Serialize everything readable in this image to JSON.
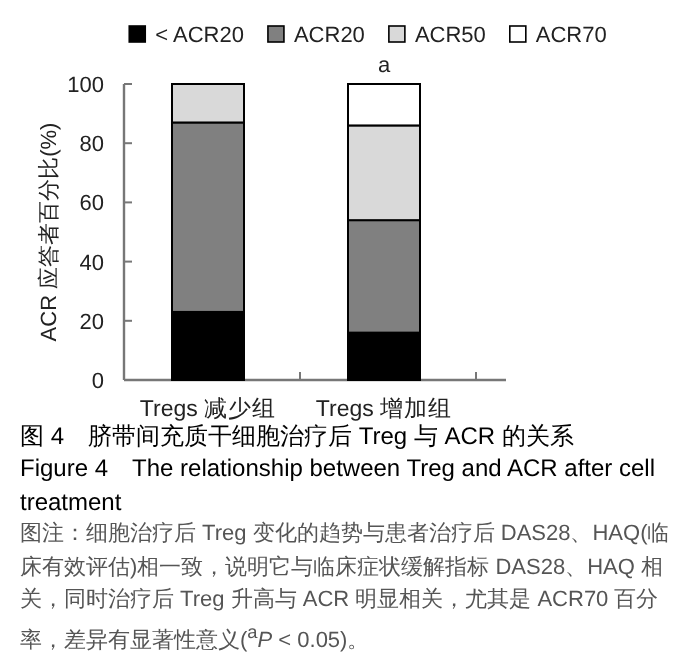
{
  "chart_data": {
    "type": "bar",
    "stacked": true,
    "title": "图 4　脐带间充质干细胞治疗后 Treg 与 ACR 的关系",
    "subtitle": "Figure 4　The relationship between Treg and ACR after cell treatment",
    "ylabel": "ACR 应答者百分比(%)",
    "categories": [
      "Tregs 减少组",
      "Tregs 增加组"
    ],
    "series": [
      {
        "name": "< ACR20",
        "color": "#000000",
        "values": [
          23,
          16
        ]
      },
      {
        "name": "ACR20",
        "color": "#808080",
        "values": [
          64,
          38
        ]
      },
      {
        "name": "ACR50",
        "color": "#d9d9d9",
        "values": [
          13,
          32
        ]
      },
      {
        "name": "ACR70",
        "color": "#ffffff",
        "values": [
          0,
          14
        ]
      }
    ],
    "ylim": [
      0,
      100
    ],
    "yticks": [
      0,
      20,
      40,
      60,
      80,
      100
    ],
    "legend": "top",
    "grid": false,
    "annotations": [
      {
        "text": "a",
        "x": "Tregs 增加组",
        "y": 100
      },
      "图注：细胞治疗后 Treg 变化的趋势与患者治疗后 DAS28、HAQ(临床有效评估)相一致，说明它与临床症状缓解指标 DAS28、HAQ 相关，同时治疗后 Treg 升高与 ACR 明显相关，尤其是 ACR70 百分率，差异有显著性意义($^{a}$*P* < 0.05)。"
    ]
  }
}
